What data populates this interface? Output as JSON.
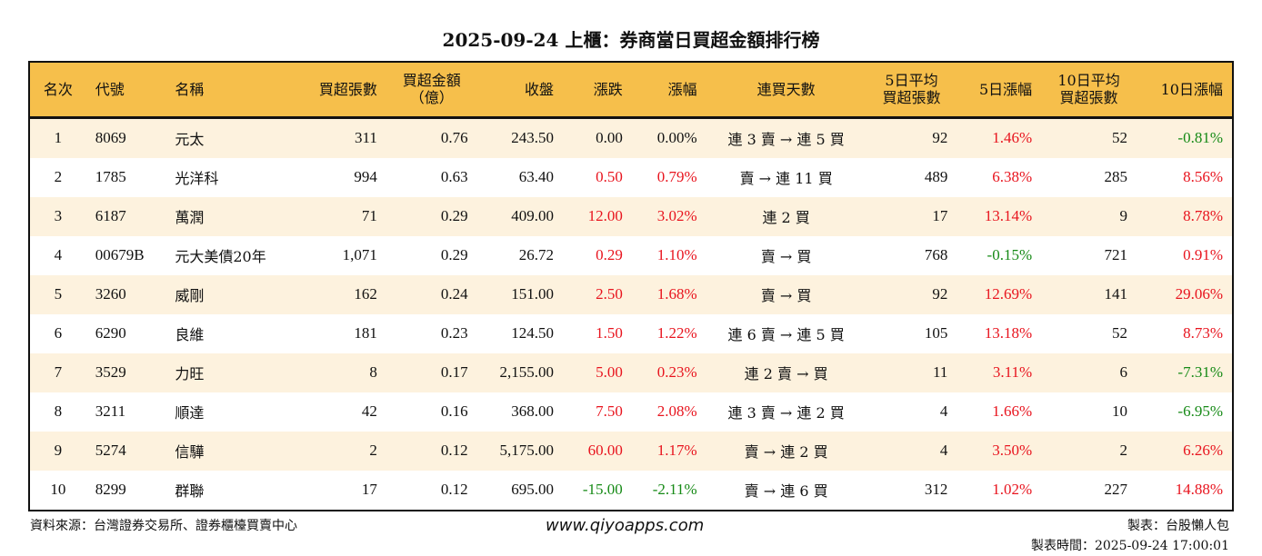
{
  "title": "2025-09-24 上櫃：券商當日買超金額排行榜",
  "colors": {
    "header_bg": "#f6bf4b",
    "row_alt": "#fdf2de",
    "up": "#e8141e",
    "down": "#168a16"
  },
  "columns": [
    "名次",
    "代號",
    "名稱",
    "買超張數",
    "買超金額\n（億）",
    "收盤",
    "漲跌",
    "漲幅",
    "連買天數",
    "5日平均\n買超張數",
    "5日漲幅",
    "10日平均\n買超張數",
    "10日漲幅"
  ],
  "rows": [
    [
      "1",
      "8069",
      "元太",
      "311",
      "0.76",
      "243.50",
      "0.00",
      "0.00%",
      "連 3 賣 → 連 5 買",
      "92",
      "1.46%",
      "52",
      "-0.81%"
    ],
    [
      "2",
      "1785",
      "光洋科",
      "994",
      "0.63",
      "63.40",
      "0.50",
      "0.79%",
      "賣 → 連 11 買",
      "489",
      "6.38%",
      "285",
      "8.56%"
    ],
    [
      "3",
      "6187",
      "萬潤",
      "71",
      "0.29",
      "409.00",
      "12.00",
      "3.02%",
      "連 2 買",
      "17",
      "13.14%",
      "9",
      "8.78%"
    ],
    [
      "4",
      "00679B",
      "元大美債20年",
      "1,071",
      "0.29",
      "26.72",
      "0.29",
      "1.10%",
      "賣 → 買",
      "768",
      "-0.15%",
      "721",
      "0.91%"
    ],
    [
      "5",
      "3260",
      "威剛",
      "162",
      "0.24",
      "151.00",
      "2.50",
      "1.68%",
      "賣 → 買",
      "92",
      "12.69%",
      "141",
      "29.06%"
    ],
    [
      "6",
      "6290",
      "良維",
      "181",
      "0.23",
      "124.50",
      "1.50",
      "1.22%",
      "連 6 賣 → 連 5 買",
      "105",
      "13.18%",
      "52",
      "8.73%"
    ],
    [
      "7",
      "3529",
      "力旺",
      "8",
      "0.17",
      "2,155.00",
      "5.00",
      "0.23%",
      "連 2 賣 → 買",
      "11",
      "3.11%",
      "6",
      "-7.31%"
    ],
    [
      "8",
      "3211",
      "順達",
      "42",
      "0.16",
      "368.00",
      "7.50",
      "2.08%",
      "連 3 賣 → 連 2 買",
      "4",
      "1.66%",
      "10",
      "-6.95%"
    ],
    [
      "9",
      "5274",
      "信驊",
      "2",
      "0.12",
      "5,175.00",
      "60.00",
      "1.17%",
      "賣 → 連 2 買",
      "4",
      "3.50%",
      "2",
      "6.26%"
    ],
    [
      "10",
      "8299",
      "群聯",
      "17",
      "0.12",
      "695.00",
      "-15.00",
      "-2.11%",
      "賣 → 連 6 買",
      "312",
      "1.02%",
      "227",
      "14.88%"
    ]
  ],
  "footer": {
    "source": "資料來源：台灣證券交易所、證券櫃檯買賣中心",
    "website": "www.qiyoapps.com",
    "maker": "製表：台股懶人包",
    "time": "製表時間：2025-09-24 17:00:01"
  }
}
